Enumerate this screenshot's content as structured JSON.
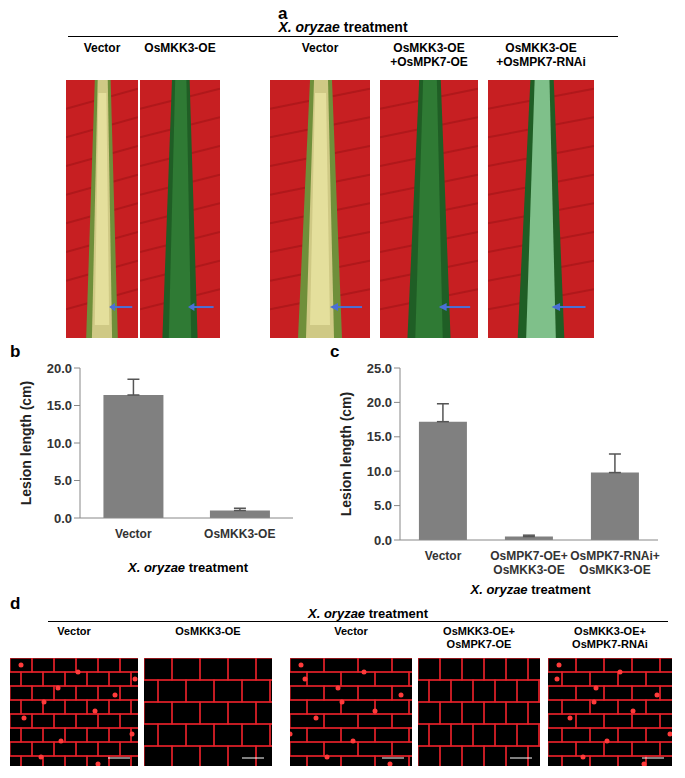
{
  "chart_data": [
    {
      "type": "bar",
      "panel_label": "b",
      "categories": [
        "Vector",
        "OsMKK3-OE"
      ],
      "values": [
        16.4,
        1.0
      ],
      "errors": [
        2.1,
        0.3
      ],
      "color": "#808080",
      "y_label": "Lesion length (cm)",
      "x_label": "X. oryzae treatment",
      "ylim": [
        0,
        20
      ],
      "yticks": [
        {
          "value": 0,
          "label": "0.0"
        },
        {
          "value": 5,
          "label": "5.0"
        },
        {
          "value": 10,
          "label": "10.0"
        },
        {
          "value": 15,
          "label": "15.0"
        },
        {
          "value": 20,
          "label": "20.0"
        }
      ],
      "grid": false
    },
    {
      "type": "bar",
      "panel_label": "c",
      "categories": [
        "Vector",
        "OsMPK7-OE+\nOsMKK3-OE",
        "OsMPK7-RNAi+\nOsMKK3-OE"
      ],
      "values": [
        17.2,
        0.5,
        9.8
      ],
      "errors": [
        2.6,
        0.2,
        2.7
      ],
      "color": "#808080",
      "y_label": "Lesion length (cm)",
      "x_label": "X. oryzae treatment",
      "ylim": [
        0,
        25
      ],
      "yticks": [
        {
          "value": 0,
          "label": "0.0"
        },
        {
          "value": 5,
          "label": "5.0"
        },
        {
          "value": 10,
          "label": "10.0"
        },
        {
          "value": 15,
          "label": "15.0"
        },
        {
          "value": 20,
          "label": "20.0"
        },
        {
          "value": 25,
          "label": "25.0"
        }
      ],
      "grid": false
    }
  ],
  "panel_a": {
    "panel_label": "a",
    "header": "X. oryzae treatment",
    "columns": [
      "Vector",
      "OsMKK3-OE",
      "Vector",
      "OsMKK3-OE\n+OsMPK7-OE",
      "OsMKK3-OE\n+OsMPK7-RNAi"
    ]
  },
  "panel_d": {
    "panel_label": "d",
    "header": "X. oryzae treatment",
    "columns": [
      "Vector",
      "OsMKK3-OE",
      "Vector",
      "OsMKK3-OE+\nOsMPK7-OE",
      "OsMKK3-OE+\nOsMPK7-RNAi"
    ]
  }
}
